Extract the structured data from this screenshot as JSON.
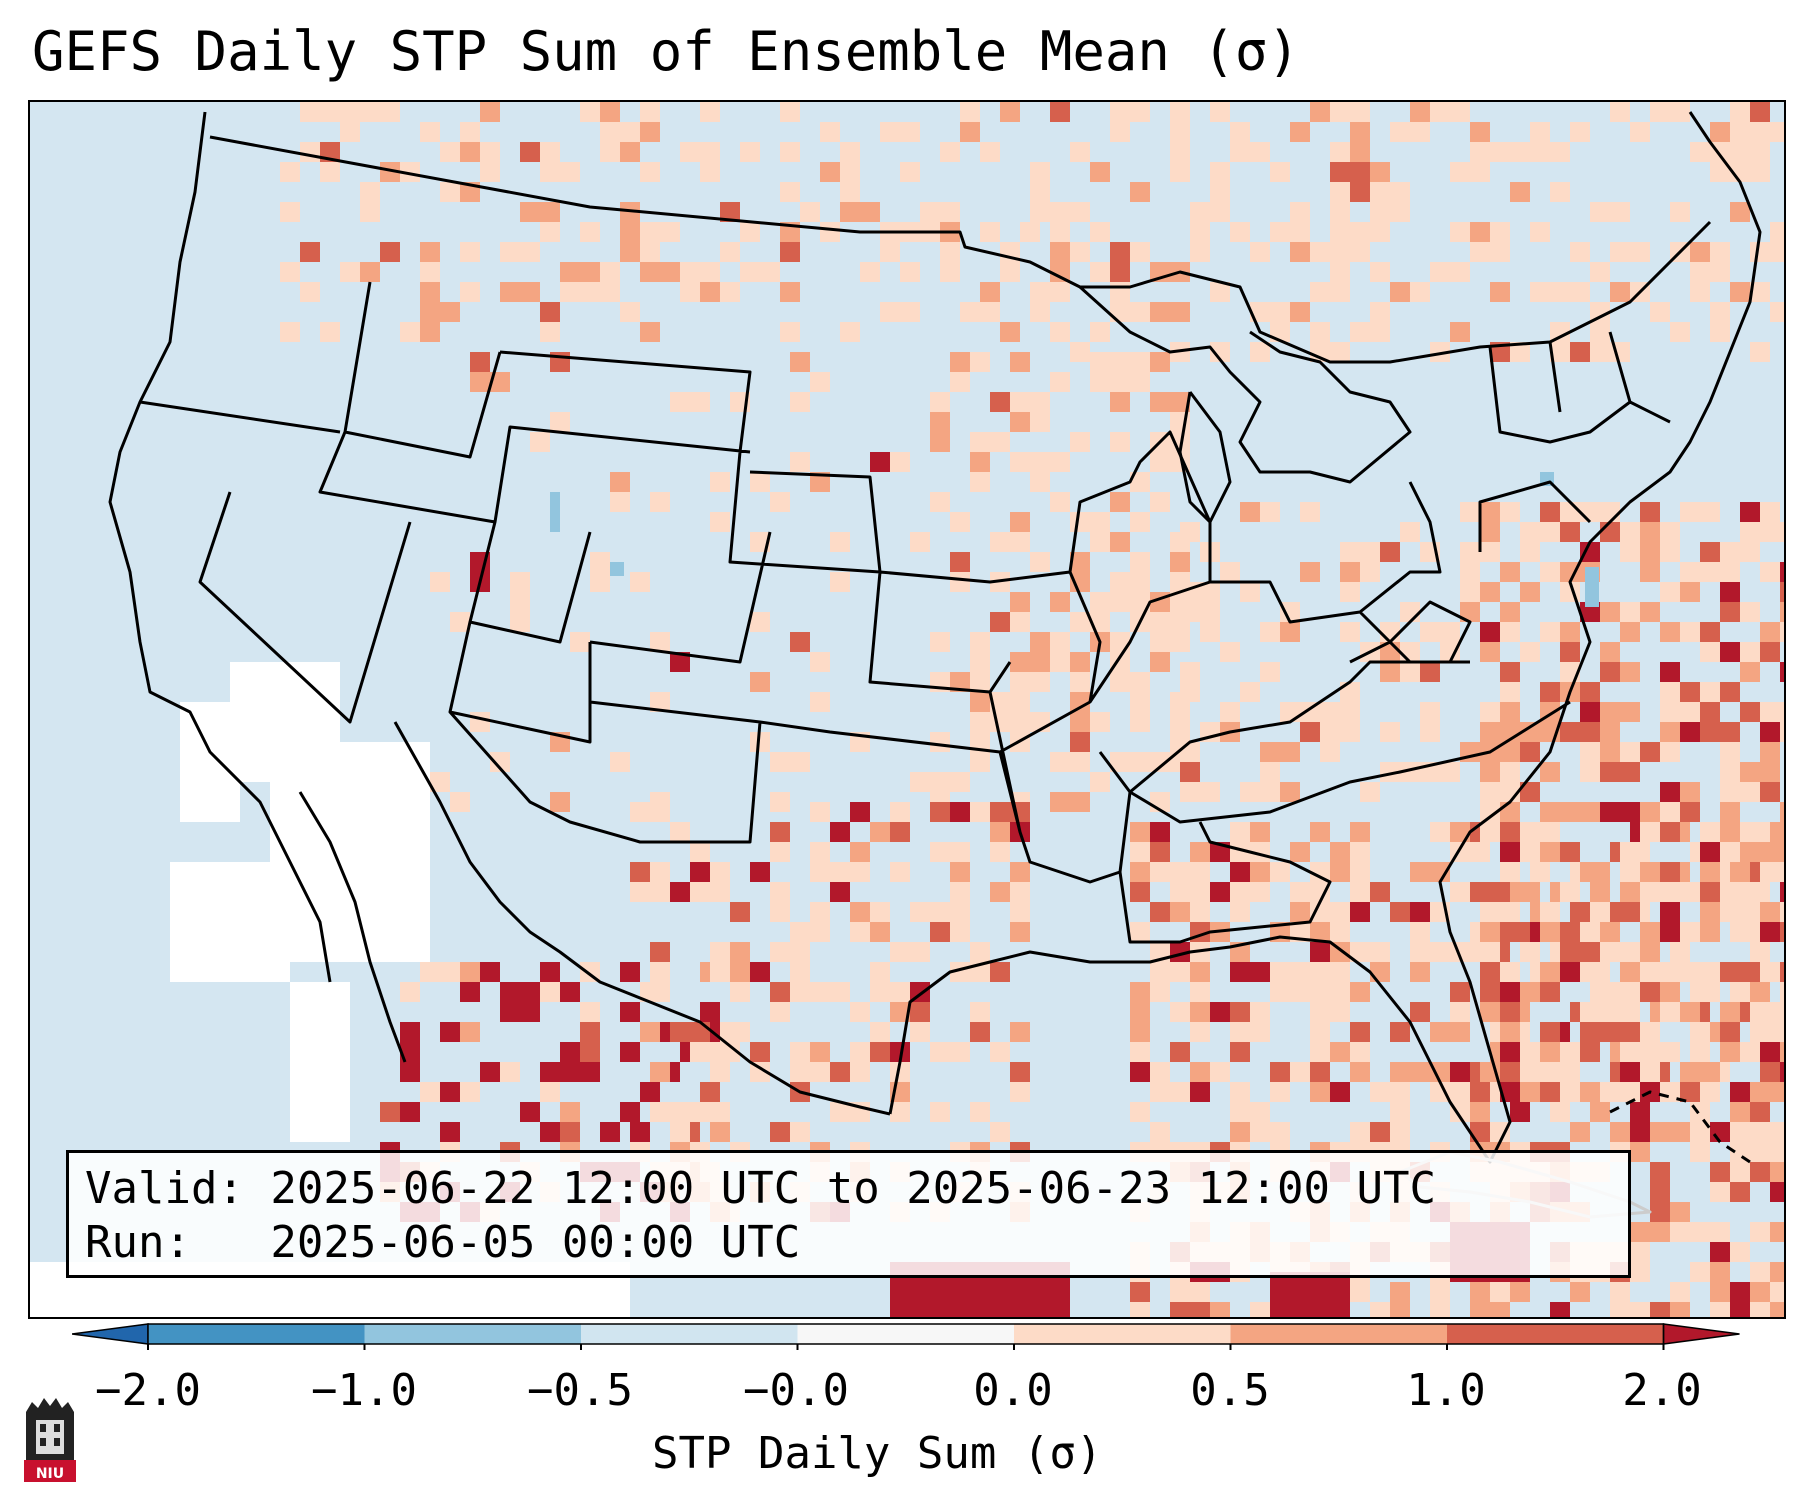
{
  "title": "GEFS Daily STP Sum of Ensemble Mean (σ)",
  "info": {
    "valid_line": "Valid: 2025-06-22 12:00 UTC to 2025-06-23 12:00 UTC",
    "run_line": "Run:   2025-06-05 00:00 UTC"
  },
  "colorbar": {
    "label": "STP Daily Sum (σ)",
    "ticks": [
      "−2.0",
      "−1.0",
      "−0.5",
      "−0.0",
      "0.0",
      "0.5",
      "1.0",
      "2.0"
    ],
    "colors": [
      "#4393c3",
      "#92c5de",
      "#d1e5f0",
      "#f7f7f7",
      "#fddbc7",
      "#f4a582",
      "#d6604d"
    ],
    "under_color": "#2166ac",
    "over_color": "#b2182b"
  },
  "map": {
    "background": "#d4e6f1",
    "palette": {
      "white": "#ffffff",
      "light_blue": "#92c5de",
      "light_red": "#fddbc7",
      "medium_red": "#f4a582",
      "red": "#d6604d",
      "dark_red": "#b2182b"
    }
  },
  "logo": {
    "text": "NIU"
  }
}
